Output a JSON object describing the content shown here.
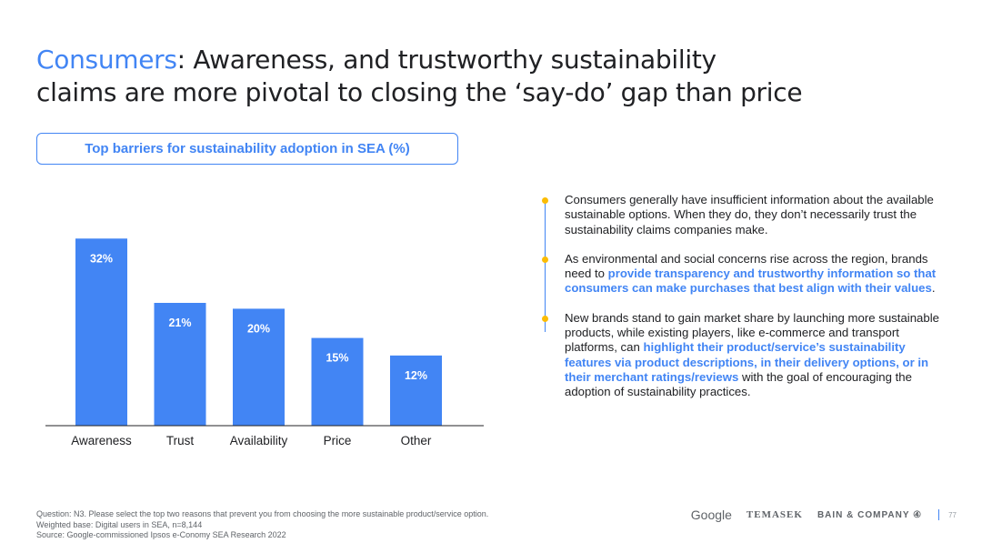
{
  "title": {
    "accent": "Consumers",
    "rest": ": Awareness, and trustworthy sustainability",
    "line2": "claims are more pivotal to closing the ‘say-do’ gap than price"
  },
  "chart_label": "Top barriers for sustainability adoption in SEA (%)",
  "chart_data": {
    "type": "bar",
    "categories": [
      "Awareness",
      "Trust",
      "Availability",
      "Price",
      "Other"
    ],
    "values": [
      32,
      21,
      20,
      15,
      12
    ],
    "data_labels": [
      "32%",
      "21%",
      "20%",
      "15%",
      "12%"
    ],
    "title": "Top barriers for sustainability adoption in SEA (%)",
    "xlabel": "",
    "ylabel": "",
    "ylim": [
      0,
      35
    ],
    "grid": false,
    "bar_color": "#4285f4"
  },
  "bullets": [
    {
      "segments": [
        {
          "text": "Consumers generally have insufficient information about the available sustainable options. When they do, they don’t necessarily trust the sustainability claims companies make.",
          "bold": false
        }
      ]
    },
    {
      "segments": [
        {
          "text": "As environmental and social concerns rise across the region, brands need to ",
          "bold": false
        },
        {
          "text": "provide transparency and trustworthy information so that consumers can make purchases that best align with their values",
          "bold": true
        },
        {
          "text": ".",
          "bold": false
        }
      ]
    },
    {
      "segments": [
        {
          "text": "New brands stand to gain market share by launching more sustainable products, while existing players, like e-commerce and transport platforms, can ",
          "bold": false
        },
        {
          "text": "highlight their product/service’s sustainability features via product descriptions, in their delivery options, or in their merchant ratings/reviews",
          "bold": true
        },
        {
          "text": " with the goal of encouraging the adoption of sustainability practices.",
          "bold": false
        }
      ]
    }
  ],
  "footnotes": {
    "question": "Question: N3. Please select the top two reasons that prevent you from choosing the more sustainable product/service option.",
    "base": "Weighted base: Digital users in SEA, n=8,144",
    "source": "Source: Google-commissioned Ipsos e-Conomy SEA Research 2022"
  },
  "logos": {
    "google": "Google",
    "temasek": "TEMASEK",
    "bain": "BAIN & COMPANY ④"
  },
  "page_number": "77",
  "colors": {
    "accent": "#4285f4",
    "bullet_dot": "#fbbc04",
    "text": "#202124"
  }
}
